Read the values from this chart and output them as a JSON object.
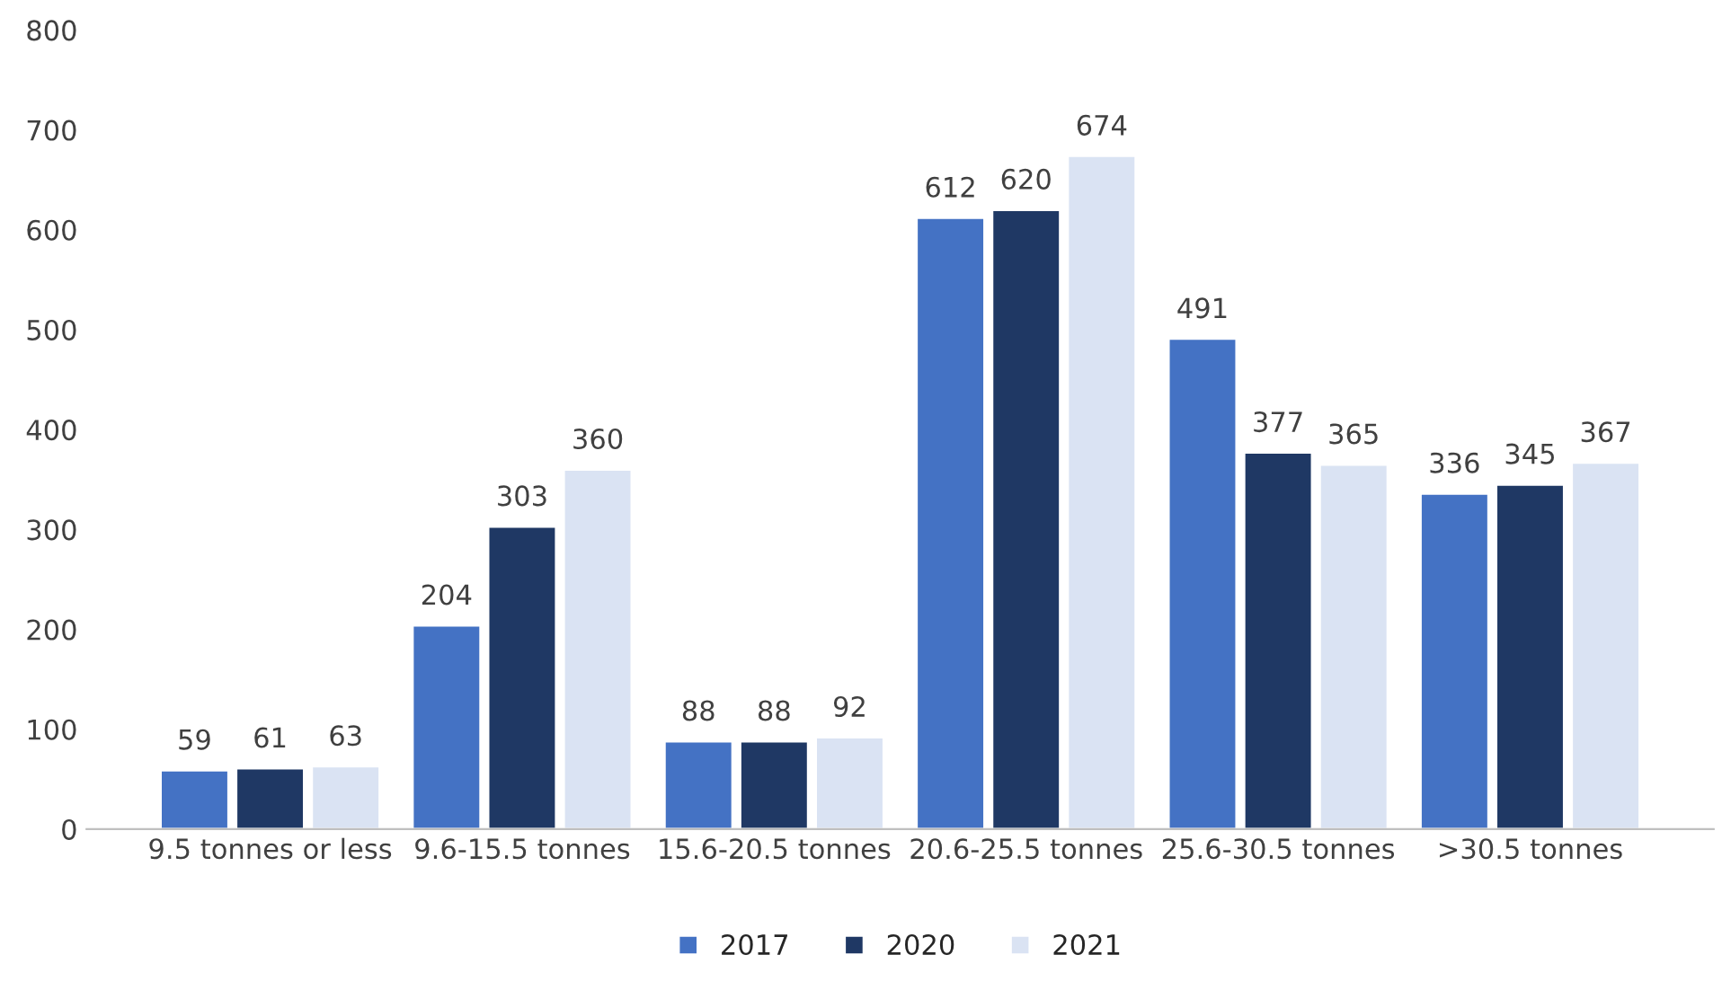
{
  "chart_data": {
    "type": "bar",
    "categories": [
      "9.5 tonnes or less",
      "9.6-15.5 tonnes",
      "15.6-20.5 tonnes",
      "20.6-25.5 tonnes",
      "25.6-30.5 tonnes",
      ">30.5 tonnes"
    ],
    "series": [
      {
        "name": "2017",
        "color": "#4472c4",
        "values": [
          59,
          204,
          88,
          612,
          491,
          336
        ]
      },
      {
        "name": "2020",
        "color": "#1f3864",
        "values": [
          61,
          303,
          88,
          620,
          377,
          345
        ]
      },
      {
        "name": "2021",
        "color": "#dae3f3",
        "values": [
          63,
          360,
          92,
          674,
          365,
          367
        ]
      }
    ],
    "ylim": [
      0,
      800
    ],
    "yticks": [
      0,
      100,
      200,
      300,
      400,
      500,
      600,
      700,
      800
    ],
    "data_labels": true,
    "legend": "bottom",
    "grid": false
  }
}
